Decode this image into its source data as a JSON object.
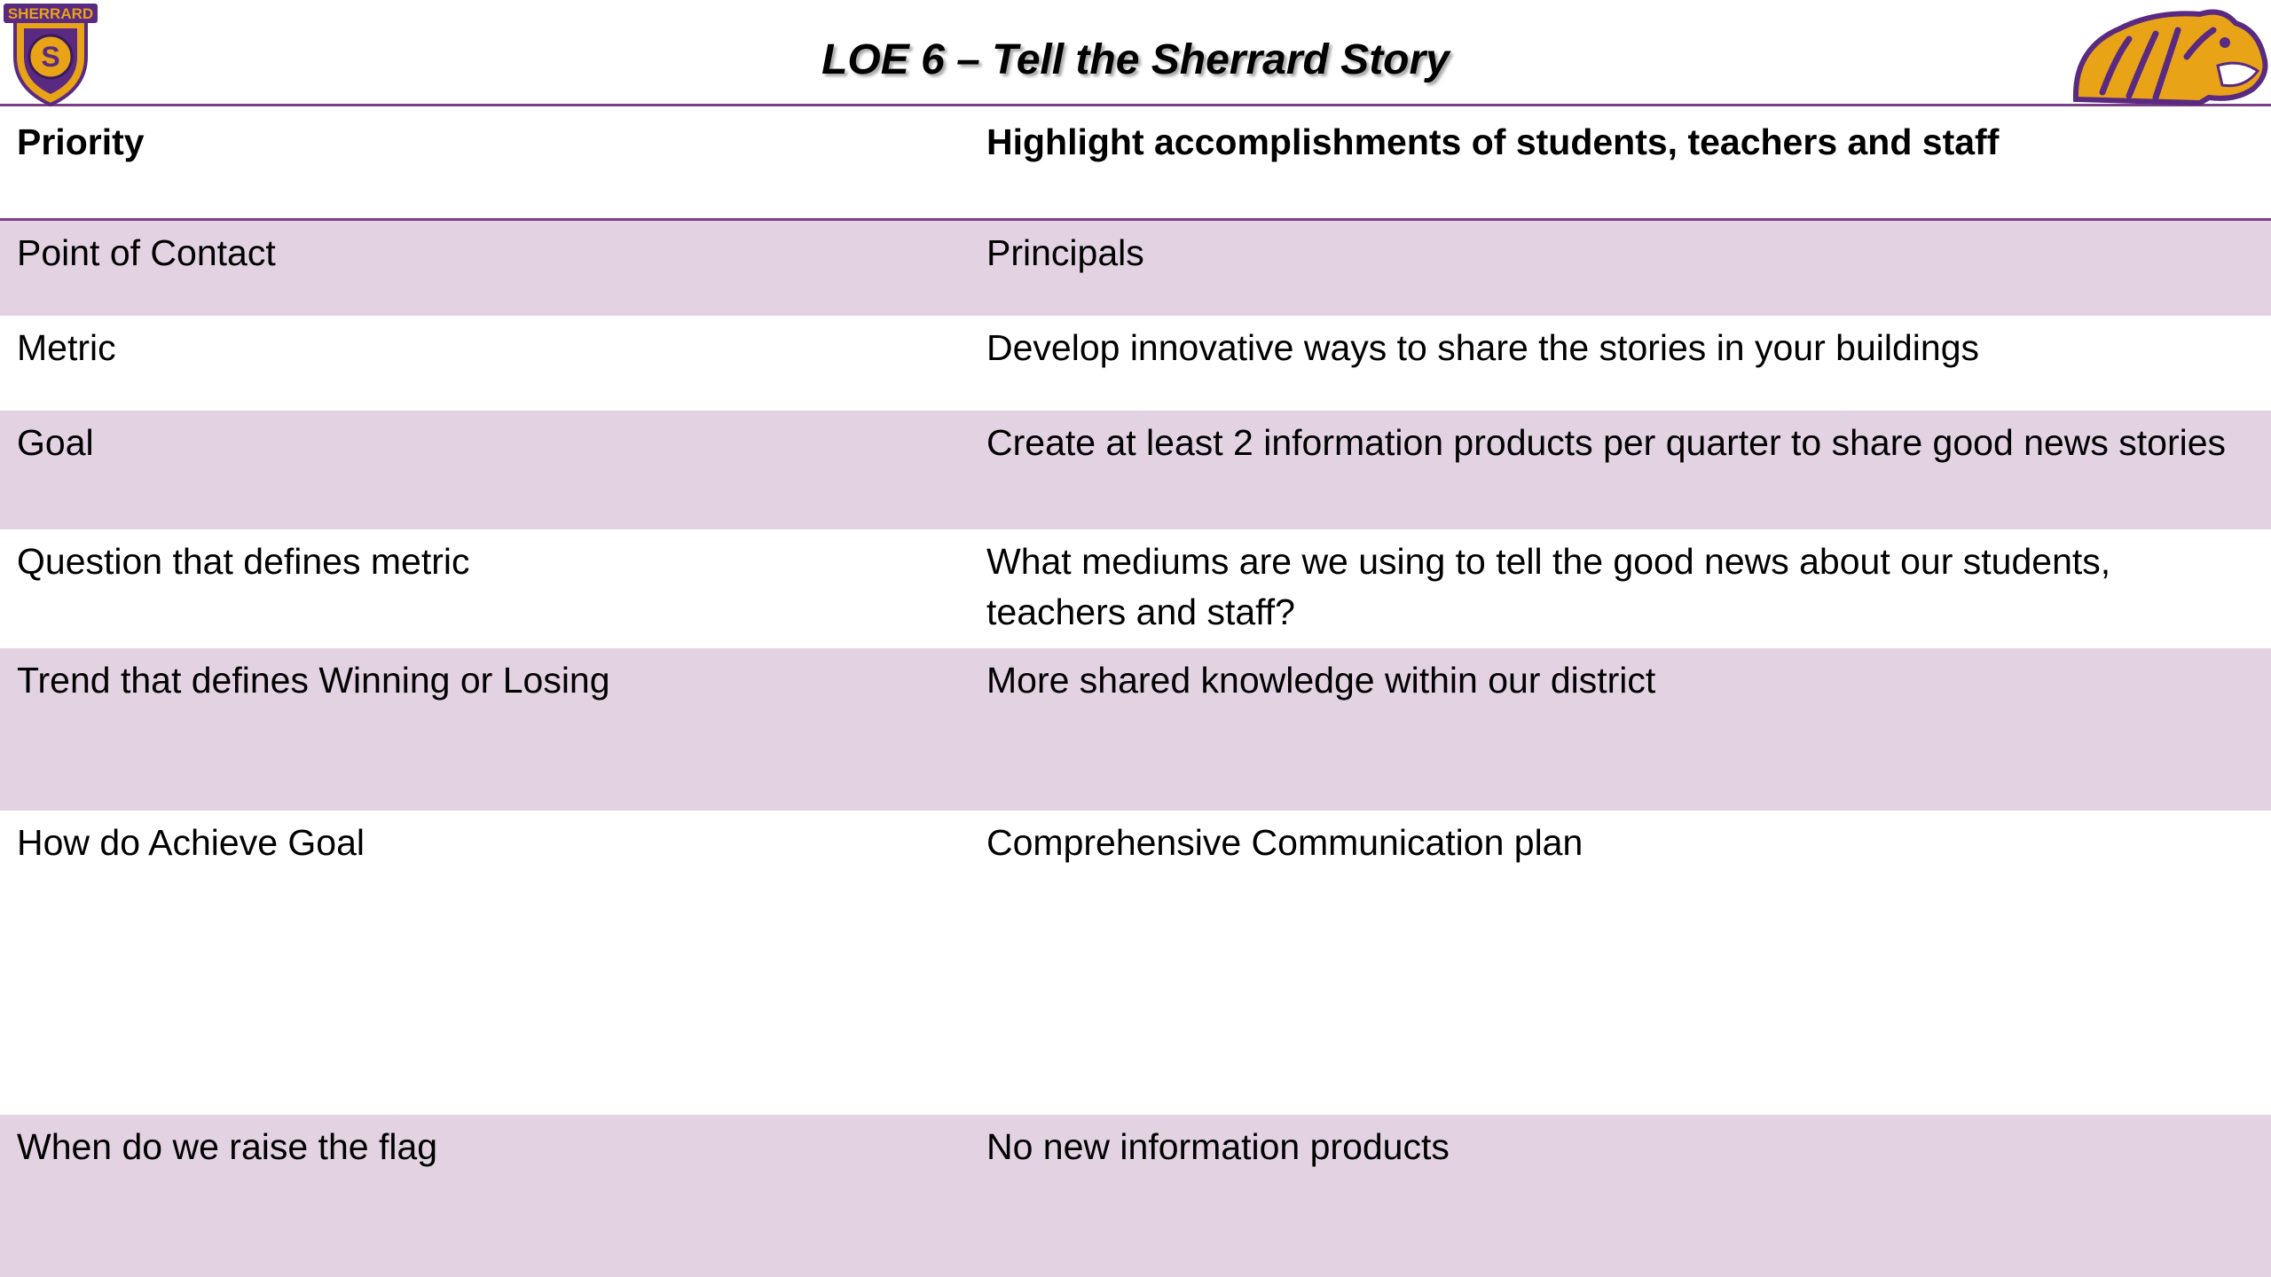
{
  "title": "LOE 6 – Tell the Sherrard Story",
  "logos": {
    "left_text": "SHERRARD",
    "left_letter": "S",
    "left_icon": "sherrard-shield-logo",
    "right_icon": "tiger-mascot-logo"
  },
  "colors": {
    "accent": "#7b3f86",
    "row_shade": "#e2d2e2",
    "logo_gold": "#e8a317",
    "logo_purple": "#5a2a82"
  },
  "table": {
    "header": {
      "label": "Priority",
      "value": "Highlight accomplishments of students, teachers and staff"
    },
    "rows": [
      {
        "label": "Point of Contact",
        "value": "Principals"
      },
      {
        "label": "Metric",
        "value": "Develop innovative ways to share the stories in your buildings"
      },
      {
        "label": "Goal",
        "value": "Create at least 2 information products per quarter to share good news stories"
      },
      {
        "label": "Question that defines metric",
        "value": "What mediums are we using to tell the good news about our students, teachers and staff?"
      },
      {
        "label": "Trend that defines Winning or Losing",
        "value": "More shared knowledge within our district"
      },
      {
        "label": "How do Achieve Goal",
        "value": "Comprehensive Communication plan"
      },
      {
        "label": "When do we raise the flag",
        "value": "No new information products"
      }
    ]
  }
}
